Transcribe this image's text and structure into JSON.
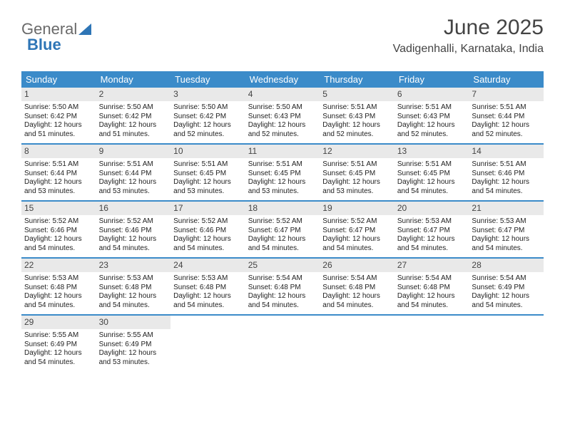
{
  "logo": {
    "part1": "General",
    "part2": "Blue"
  },
  "title": "June 2025",
  "location": "Vadigenhalli, Karnataka, India",
  "colors": {
    "header_bg": "#3b8bc9",
    "header_text": "#ffffff",
    "daynum_bg": "#e9e9e9",
    "border": "#3b8bc9",
    "logo_accent": "#2e75b6"
  },
  "day_names": [
    "Sunday",
    "Monday",
    "Tuesday",
    "Wednesday",
    "Thursday",
    "Friday",
    "Saturday"
  ],
  "weeks": [
    [
      {
        "n": "1",
        "sr": "Sunrise: 5:50 AM",
        "ss": "Sunset: 6:42 PM",
        "d1": "Daylight: 12 hours",
        "d2": "and 51 minutes."
      },
      {
        "n": "2",
        "sr": "Sunrise: 5:50 AM",
        "ss": "Sunset: 6:42 PM",
        "d1": "Daylight: 12 hours",
        "d2": "and 51 minutes."
      },
      {
        "n": "3",
        "sr": "Sunrise: 5:50 AM",
        "ss": "Sunset: 6:42 PM",
        "d1": "Daylight: 12 hours",
        "d2": "and 52 minutes."
      },
      {
        "n": "4",
        "sr": "Sunrise: 5:50 AM",
        "ss": "Sunset: 6:43 PM",
        "d1": "Daylight: 12 hours",
        "d2": "and 52 minutes."
      },
      {
        "n": "5",
        "sr": "Sunrise: 5:51 AM",
        "ss": "Sunset: 6:43 PM",
        "d1": "Daylight: 12 hours",
        "d2": "and 52 minutes."
      },
      {
        "n": "6",
        "sr": "Sunrise: 5:51 AM",
        "ss": "Sunset: 6:43 PM",
        "d1": "Daylight: 12 hours",
        "d2": "and 52 minutes."
      },
      {
        "n": "7",
        "sr": "Sunrise: 5:51 AM",
        "ss": "Sunset: 6:44 PM",
        "d1": "Daylight: 12 hours",
        "d2": "and 52 minutes."
      }
    ],
    [
      {
        "n": "8",
        "sr": "Sunrise: 5:51 AM",
        "ss": "Sunset: 6:44 PM",
        "d1": "Daylight: 12 hours",
        "d2": "and 53 minutes."
      },
      {
        "n": "9",
        "sr": "Sunrise: 5:51 AM",
        "ss": "Sunset: 6:44 PM",
        "d1": "Daylight: 12 hours",
        "d2": "and 53 minutes."
      },
      {
        "n": "10",
        "sr": "Sunrise: 5:51 AM",
        "ss": "Sunset: 6:45 PM",
        "d1": "Daylight: 12 hours",
        "d2": "and 53 minutes."
      },
      {
        "n": "11",
        "sr": "Sunrise: 5:51 AM",
        "ss": "Sunset: 6:45 PM",
        "d1": "Daylight: 12 hours",
        "d2": "and 53 minutes."
      },
      {
        "n": "12",
        "sr": "Sunrise: 5:51 AM",
        "ss": "Sunset: 6:45 PM",
        "d1": "Daylight: 12 hours",
        "d2": "and 53 minutes."
      },
      {
        "n": "13",
        "sr": "Sunrise: 5:51 AM",
        "ss": "Sunset: 6:45 PM",
        "d1": "Daylight: 12 hours",
        "d2": "and 54 minutes."
      },
      {
        "n": "14",
        "sr": "Sunrise: 5:51 AM",
        "ss": "Sunset: 6:46 PM",
        "d1": "Daylight: 12 hours",
        "d2": "and 54 minutes."
      }
    ],
    [
      {
        "n": "15",
        "sr": "Sunrise: 5:52 AM",
        "ss": "Sunset: 6:46 PM",
        "d1": "Daylight: 12 hours",
        "d2": "and 54 minutes."
      },
      {
        "n": "16",
        "sr": "Sunrise: 5:52 AM",
        "ss": "Sunset: 6:46 PM",
        "d1": "Daylight: 12 hours",
        "d2": "and 54 minutes."
      },
      {
        "n": "17",
        "sr": "Sunrise: 5:52 AM",
        "ss": "Sunset: 6:46 PM",
        "d1": "Daylight: 12 hours",
        "d2": "and 54 minutes."
      },
      {
        "n": "18",
        "sr": "Sunrise: 5:52 AM",
        "ss": "Sunset: 6:47 PM",
        "d1": "Daylight: 12 hours",
        "d2": "and 54 minutes."
      },
      {
        "n": "19",
        "sr": "Sunrise: 5:52 AM",
        "ss": "Sunset: 6:47 PM",
        "d1": "Daylight: 12 hours",
        "d2": "and 54 minutes."
      },
      {
        "n": "20",
        "sr": "Sunrise: 5:53 AM",
        "ss": "Sunset: 6:47 PM",
        "d1": "Daylight: 12 hours",
        "d2": "and 54 minutes."
      },
      {
        "n": "21",
        "sr": "Sunrise: 5:53 AM",
        "ss": "Sunset: 6:47 PM",
        "d1": "Daylight: 12 hours",
        "d2": "and 54 minutes."
      }
    ],
    [
      {
        "n": "22",
        "sr": "Sunrise: 5:53 AM",
        "ss": "Sunset: 6:48 PM",
        "d1": "Daylight: 12 hours",
        "d2": "and 54 minutes."
      },
      {
        "n": "23",
        "sr": "Sunrise: 5:53 AM",
        "ss": "Sunset: 6:48 PM",
        "d1": "Daylight: 12 hours",
        "d2": "and 54 minutes."
      },
      {
        "n": "24",
        "sr": "Sunrise: 5:53 AM",
        "ss": "Sunset: 6:48 PM",
        "d1": "Daylight: 12 hours",
        "d2": "and 54 minutes."
      },
      {
        "n": "25",
        "sr": "Sunrise: 5:54 AM",
        "ss": "Sunset: 6:48 PM",
        "d1": "Daylight: 12 hours",
        "d2": "and 54 minutes."
      },
      {
        "n": "26",
        "sr": "Sunrise: 5:54 AM",
        "ss": "Sunset: 6:48 PM",
        "d1": "Daylight: 12 hours",
        "d2": "and 54 minutes."
      },
      {
        "n": "27",
        "sr": "Sunrise: 5:54 AM",
        "ss": "Sunset: 6:48 PM",
        "d1": "Daylight: 12 hours",
        "d2": "and 54 minutes."
      },
      {
        "n": "28",
        "sr": "Sunrise: 5:54 AM",
        "ss": "Sunset: 6:49 PM",
        "d1": "Daylight: 12 hours",
        "d2": "and 54 minutes."
      }
    ],
    [
      {
        "n": "29",
        "sr": "Sunrise: 5:55 AM",
        "ss": "Sunset: 6:49 PM",
        "d1": "Daylight: 12 hours",
        "d2": "and 54 minutes."
      },
      {
        "n": "30",
        "sr": "Sunrise: 5:55 AM",
        "ss": "Sunset: 6:49 PM",
        "d1": "Daylight: 12 hours",
        "d2": "and 53 minutes."
      },
      null,
      null,
      null,
      null,
      null
    ]
  ]
}
